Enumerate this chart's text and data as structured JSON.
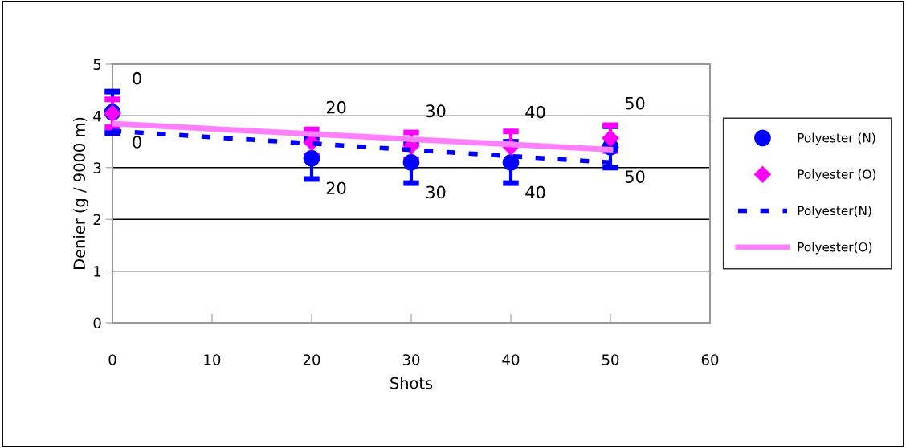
{
  "chart_data": {
    "type": "scatter",
    "xlabel": "Shots",
    "ylabel": "Denier (g / 9000 m)",
    "xlim": [
      0,
      60
    ],
    "xticks": [
      0,
      10,
      20,
      30,
      40,
      50,
      60
    ],
    "ylim": [
      0,
      5
    ],
    "yticks": [
      0,
      1,
      2,
      3,
      4,
      5
    ],
    "grid": "y",
    "legend": "right",
    "series": [
      {
        "name": "Polyester (N)",
        "marker": "circle",
        "color": "#0000ff",
        "x": [
          0,
          20,
          30,
          40,
          50
        ],
        "values": [
          4.07,
          3.18,
          3.1,
          3.1,
          3.4
        ],
        "errors": [
          0.4,
          0.4,
          0.4,
          0.4,
          0.4
        ]
      },
      {
        "name": "Polyester (O)",
        "marker": "diamond",
        "color": "#ff00ff",
        "x": [
          0,
          20,
          30,
          40,
          50
        ],
        "values": [
          4.05,
          3.49,
          3.42,
          3.4,
          3.57
        ],
        "errors": [
          0.27,
          0.25,
          0.26,
          0.3,
          0.25
        ]
      },
      {
        "name": "Polyester(N)",
        "type": "line",
        "line_style": "dotted",
        "color": "#0000ff",
        "x": [
          0,
          50
        ],
        "values": [
          3.71,
          3.1
        ]
      },
      {
        "name": "Polyester(O)",
        "type": "line",
        "line_style": "solid",
        "color": "#ff80ff",
        "x": [
          0,
          50
        ],
        "values": [
          3.85,
          3.35
        ]
      }
    ],
    "annotations": [
      {
        "text": "0",
        "x": 0,
        "y": 4.05
      },
      {
        "text": "20",
        "x": 20,
        "y": 3.49
      },
      {
        "text": "30",
        "x": 30,
        "y": 3.42
      },
      {
        "text": "40",
        "x": 40,
        "y": 3.4
      },
      {
        "text": "50",
        "x": 50,
        "y": 3.57
      },
      {
        "text": "0",
        "x": 0,
        "y": 4.07
      },
      {
        "text": "20",
        "x": 20,
        "y": 3.18
      },
      {
        "text": "30",
        "x": 30,
        "y": 3.1
      },
      {
        "text": "40",
        "x": 40,
        "y": 3.1
      },
      {
        "text": "50",
        "x": 50,
        "y": 3.4
      }
    ]
  }
}
